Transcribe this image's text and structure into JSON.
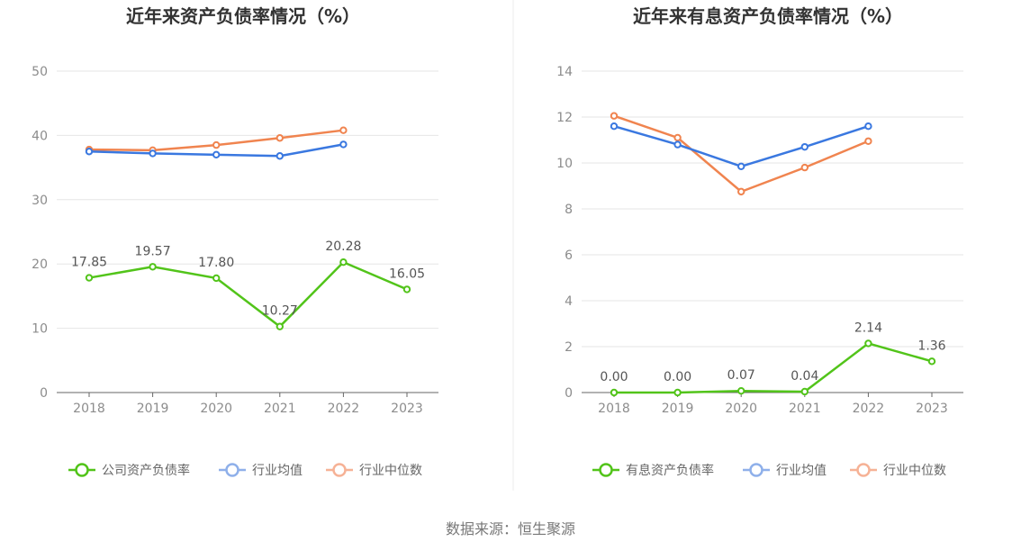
{
  "chart_data": [
    {
      "type": "line",
      "title": "近年来资产负债率情况（%）",
      "categories": [
        "2018",
        "2019",
        "2020",
        "2021",
        "2022",
        "2023"
      ],
      "ylim": [
        0,
        50
      ],
      "yticks": [
        "0",
        "10",
        "20",
        "30",
        "40",
        "50"
      ],
      "grid": true,
      "legend_position": "bottom",
      "series": [
        {
          "name": "公司资产负债率",
          "color": "#52c41a",
          "values": [
            17.85,
            19.57,
            17.8,
            10.27,
            20.28,
            16.05
          ],
          "labels": [
            "17.85",
            "19.57",
            "17.80",
            "10.27",
            "20.28",
            "16.05"
          ]
        },
        {
          "name": "行业均值",
          "color": "#3a78e0",
          "values": [
            37.5,
            37.2,
            37.0,
            36.8,
            38.6,
            null
          ]
        },
        {
          "name": "行业中位数",
          "color": "#f0844f",
          "values": [
            37.8,
            37.7,
            38.5,
            39.6,
            40.8,
            null
          ]
        }
      ]
    },
    {
      "type": "line",
      "title": "近年来有息资产负债率情况（%）",
      "categories": [
        "2018",
        "2019",
        "2020",
        "2021",
        "2022",
        "2023"
      ],
      "ylim": [
        0,
        14
      ],
      "yticks": [
        "0",
        "2",
        "4",
        "6",
        "8",
        "10",
        "12",
        "14"
      ],
      "grid": true,
      "legend_position": "bottom",
      "series": [
        {
          "name": "有息资产负债率",
          "color": "#52c41a",
          "values": [
            0.0,
            0.0,
            0.07,
            0.04,
            2.14,
            1.36
          ],
          "labels": [
            "0.00",
            "0.00",
            "0.07",
            "0.04",
            "2.14",
            "1.36"
          ]
        },
        {
          "name": "行业均值",
          "color": "#3a78e0",
          "values": [
            11.6,
            10.8,
            9.85,
            10.7,
            11.6,
            null
          ]
        },
        {
          "name": "行业中位数",
          "color": "#f0844f",
          "values": [
            12.05,
            11.1,
            8.75,
            9.8,
            10.95,
            null
          ]
        }
      ]
    }
  ],
  "source": "数据来源：恒生聚源"
}
